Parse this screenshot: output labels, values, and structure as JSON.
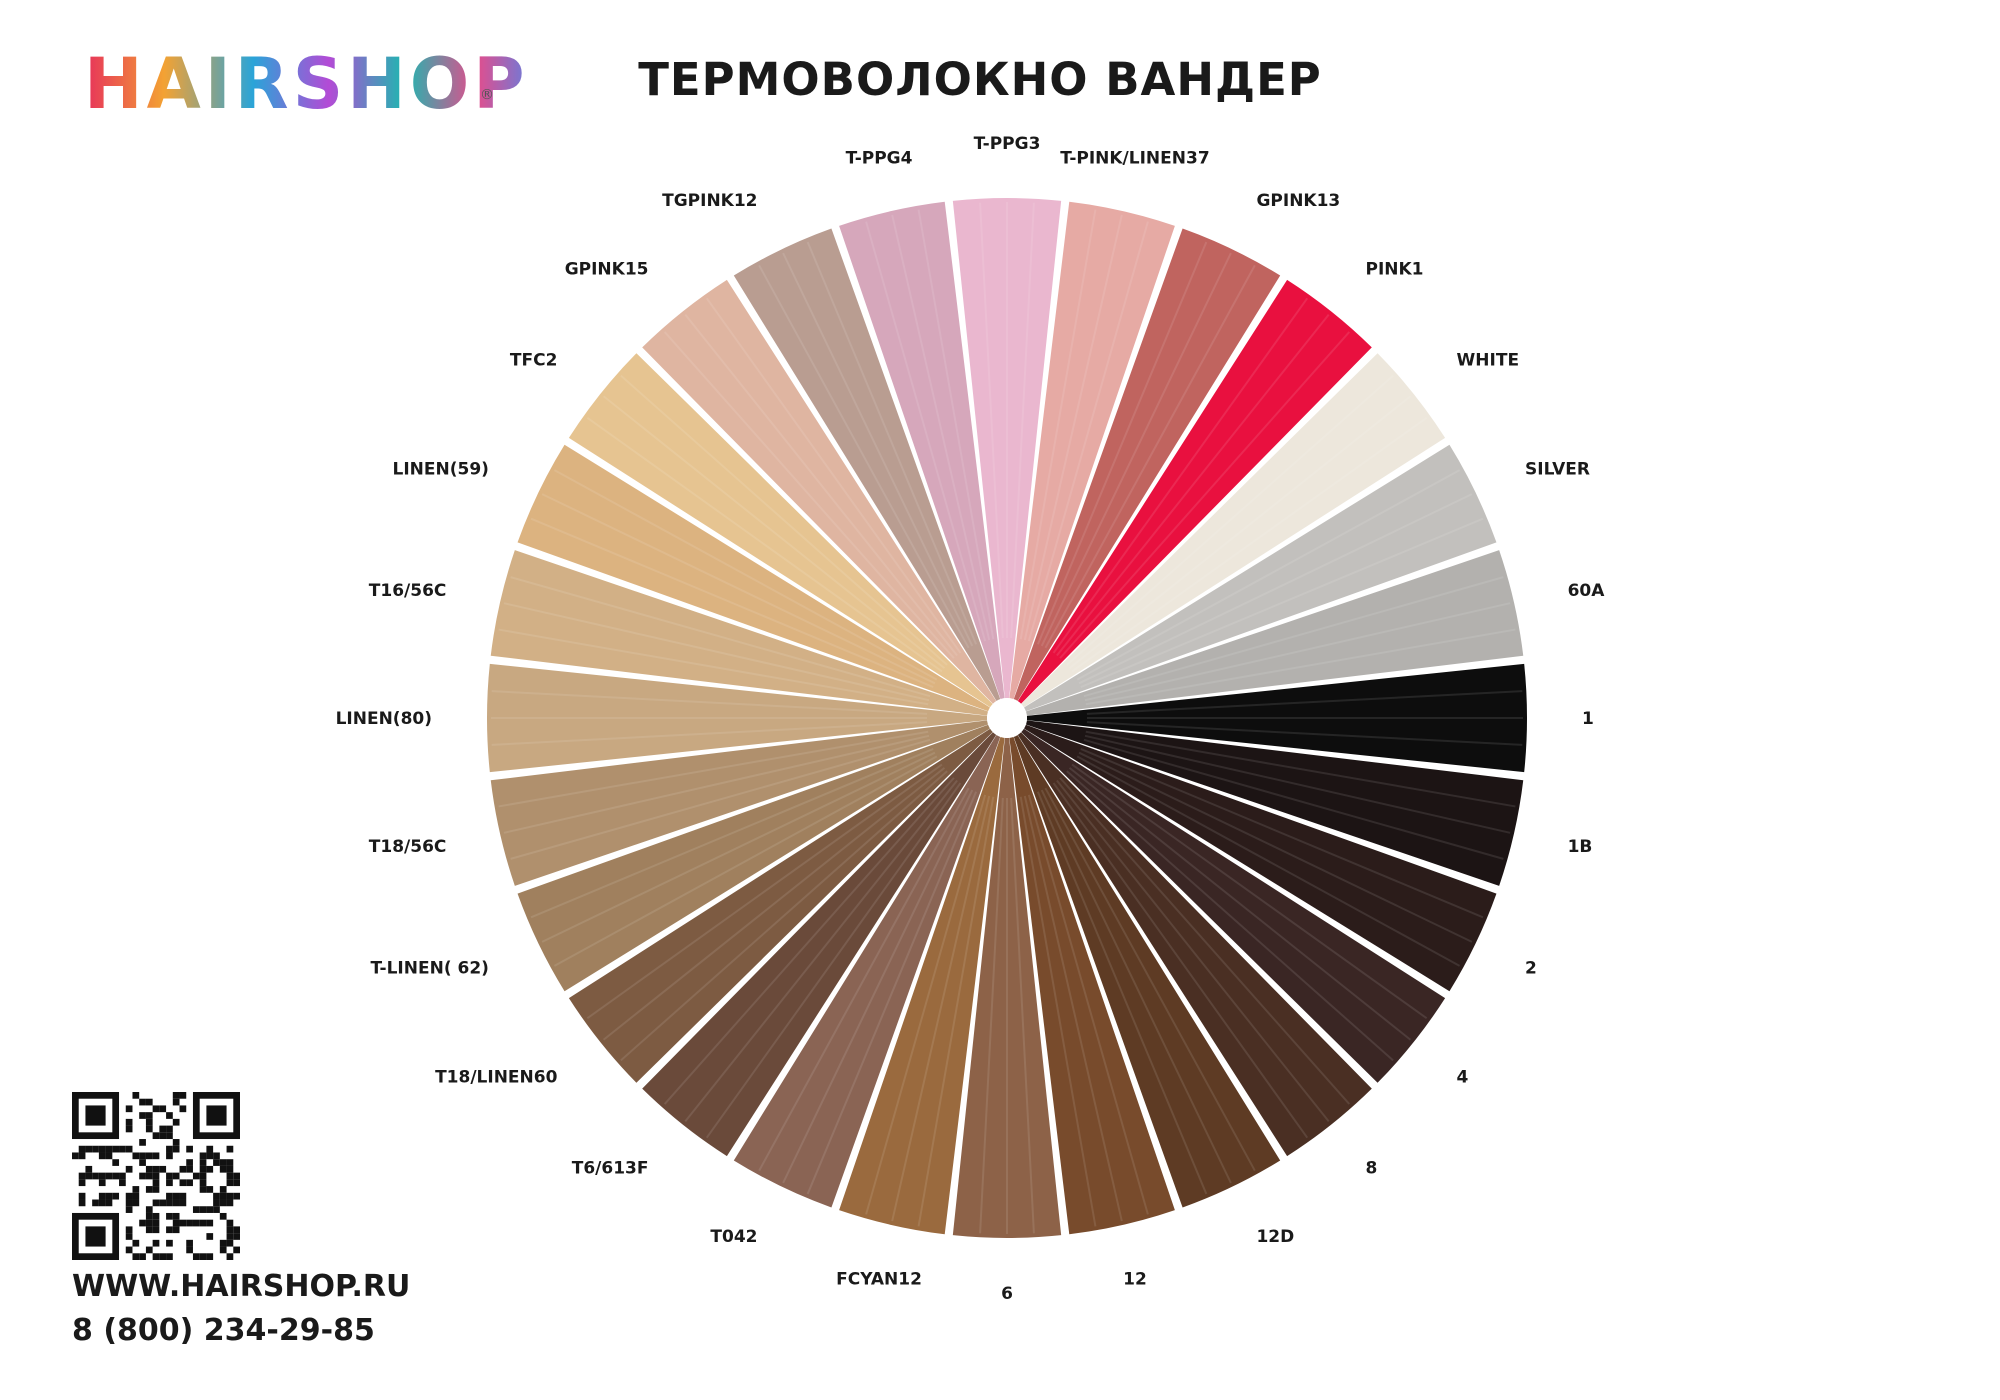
{
  "brand": {
    "logo_text": "HAIRSHOP",
    "registered_mark": "®"
  },
  "title": "ТЕРМОВОЛОКНО ВАНДЕР",
  "colors": [
    {
      "name": "1",
      "color": "#0d0d0d"
    },
    {
      "name": "1B",
      "color": "#1c1414"
    },
    {
      "name": "2",
      "color": "#2b1c1a"
    },
    {
      "name": "4",
      "color": "#3a2624"
    },
    {
      "name": "8",
      "color": "#4a2f23"
    },
    {
      "name": "12D",
      "color": "#5e3b24"
    },
    {
      "name": "12",
      "color": "#784b2c"
    },
    {
      "name": "6",
      "color": "#8d6248"
    },
    {
      "name": "FCYAN12",
      "color": "#9a6a3e"
    },
    {
      "name": "T042",
      "color": "#8a6454"
    },
    {
      "name": "T6/613F",
      "color": "#6a4a3a"
    },
    {
      "name": "T18/LINEN60",
      "color": "#7d5b42"
    },
    {
      "name": "T-LINEN( 62)",
      "color": "#a0805e"
    },
    {
      "name": "T18/56C",
      "color": "#b0906d"
    },
    {
      "name": "LINEN(80)",
      "color": "#c8a881"
    },
    {
      "name": "T16/56C",
      "color": "#d2b086"
    },
    {
      "name": "LINEN(59)",
      "color": "#dcb380"
    },
    {
      "name": "TFC2",
      "color": "#e6c491"
    },
    {
      "name": "GPINK15",
      "color": "#dfb5a1"
    },
    {
      "name": "TGPINK12",
      "color": "#b99d91"
    },
    {
      "name": "T-PPG4",
      "color": "#d6a7bb"
    },
    {
      "name": "T-PPG3",
      "color": "#eab7cf"
    },
    {
      "name": "T-PINK/LINEN37",
      "color": "#e6aaa4"
    },
    {
      "name": "GPINK13",
      "color": "#c0645f"
    },
    {
      "name": "PINK1",
      "color": "#e9103f"
    },
    {
      "name": "WHITE",
      "color": "#ede7dc"
    },
    {
      "name": "SILVER",
      "color": "#c2c0bd"
    },
    {
      "name": "60A",
      "color": "#b3b1ae"
    }
  ],
  "contact": {
    "website": "WWW.HAIRSHOP.RU",
    "phone": "8 (800) 234-29-85"
  }
}
